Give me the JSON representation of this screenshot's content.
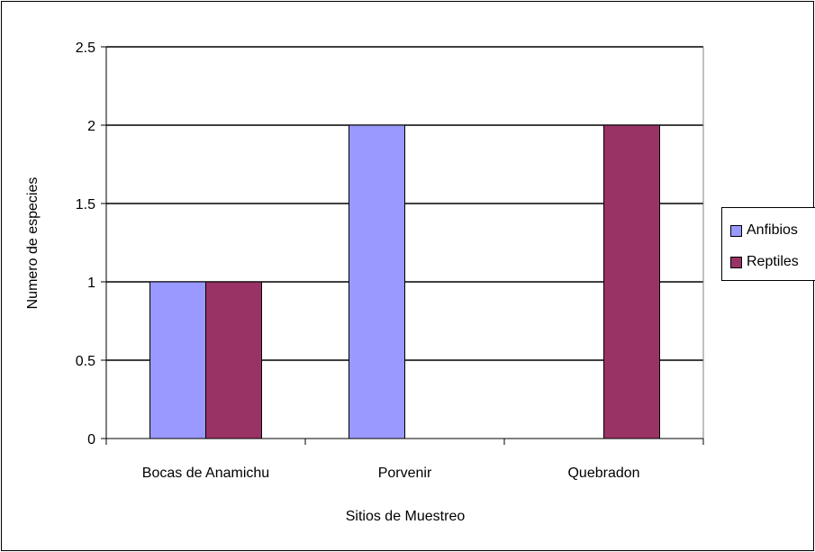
{
  "chart_data": {
    "type": "bar",
    "categories": [
      "Bocas de Anamichu",
      "Porvenir",
      "Quebradon"
    ],
    "series": [
      {
        "name": "Anfibios",
        "values": [
          1,
          2,
          0
        ],
        "color": "#9999ff"
      },
      {
        "name": "Reptiles",
        "values": [
          1,
          0,
          2
        ],
        "color": "#993366"
      }
    ],
    "title": "",
    "xlabel": "Sitios de Muestreo",
    "ylabel": "Numero de especies",
    "ylim": [
      0,
      2.5
    ],
    "yticks": [
      "0",
      "0.5",
      "1",
      "1.5",
      "2",
      "2.5"
    ],
    "grid": true,
    "legend_position": "right"
  }
}
